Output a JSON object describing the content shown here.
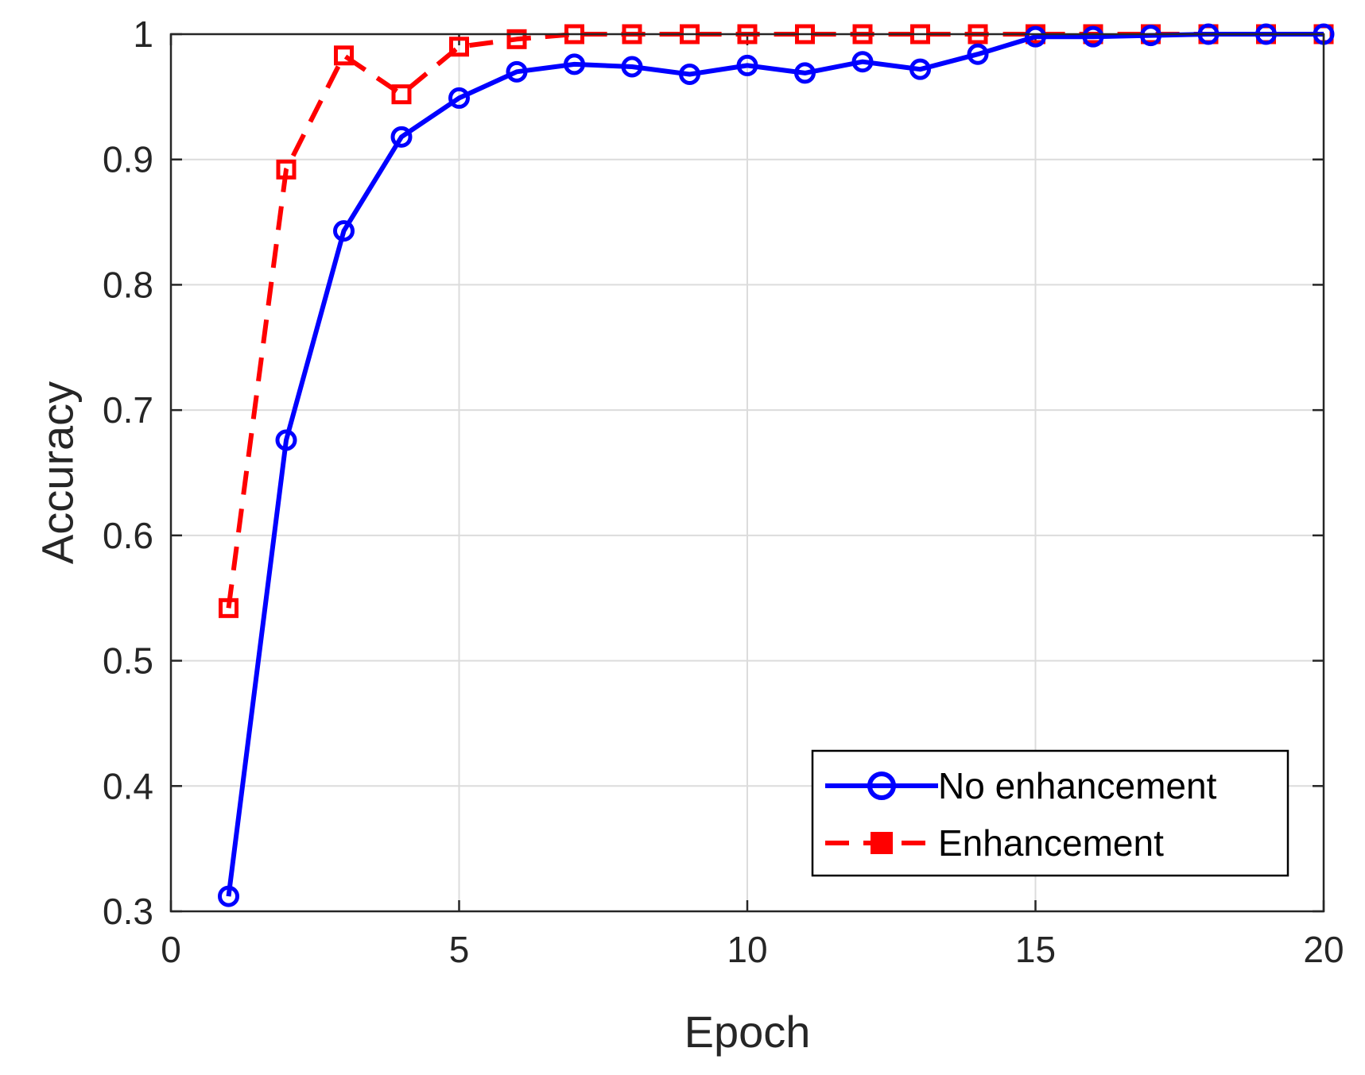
{
  "chart_data": {
    "type": "line",
    "xlabel": "Epoch",
    "ylabel": "Accuracy",
    "xlim": [
      0,
      20
    ],
    "ylim": [
      0.3,
      1
    ],
    "xticks": [
      0,
      5,
      10,
      15,
      20
    ],
    "yticks": [
      0.3,
      0.4,
      0.5,
      0.6,
      0.7,
      0.8,
      0.9,
      1
    ],
    "ytick_labels": [
      "0.3",
      "0.4",
      "0.5",
      "0.6",
      "0.7",
      "0.8",
      "0.9",
      "1"
    ],
    "grid": true,
    "legend_position": "bottom-right",
    "x": [
      1,
      2,
      3,
      4,
      5,
      6,
      7,
      8,
      9,
      10,
      11,
      12,
      13,
      14,
      15,
      16,
      17,
      18,
      19,
      20
    ],
    "series": [
      {
        "name": "No enhancement",
        "color": "#0000ff",
        "line_style": "solid",
        "marker": "circle",
        "values": [
          0.312,
          0.676,
          0.843,
          0.918,
          0.949,
          0.97,
          0.976,
          0.974,
          0.968,
          0.975,
          0.969,
          0.978,
          0.972,
          0.984,
          0.998,
          0.998,
          0.999,
          1.0,
          1.0,
          1.0
        ]
      },
      {
        "name": "Enhancement",
        "color": "#ff0000",
        "line_style": "dashed",
        "marker": "square",
        "values": [
          0.542,
          0.892,
          0.983,
          0.952,
          0.99,
          0.996,
          1.0,
          1.0,
          1.0,
          1.0,
          1.0,
          1.0,
          1.0,
          1.0,
          1.0,
          1.0,
          1.0,
          1.0,
          1.0,
          1.0
        ]
      }
    ]
  }
}
